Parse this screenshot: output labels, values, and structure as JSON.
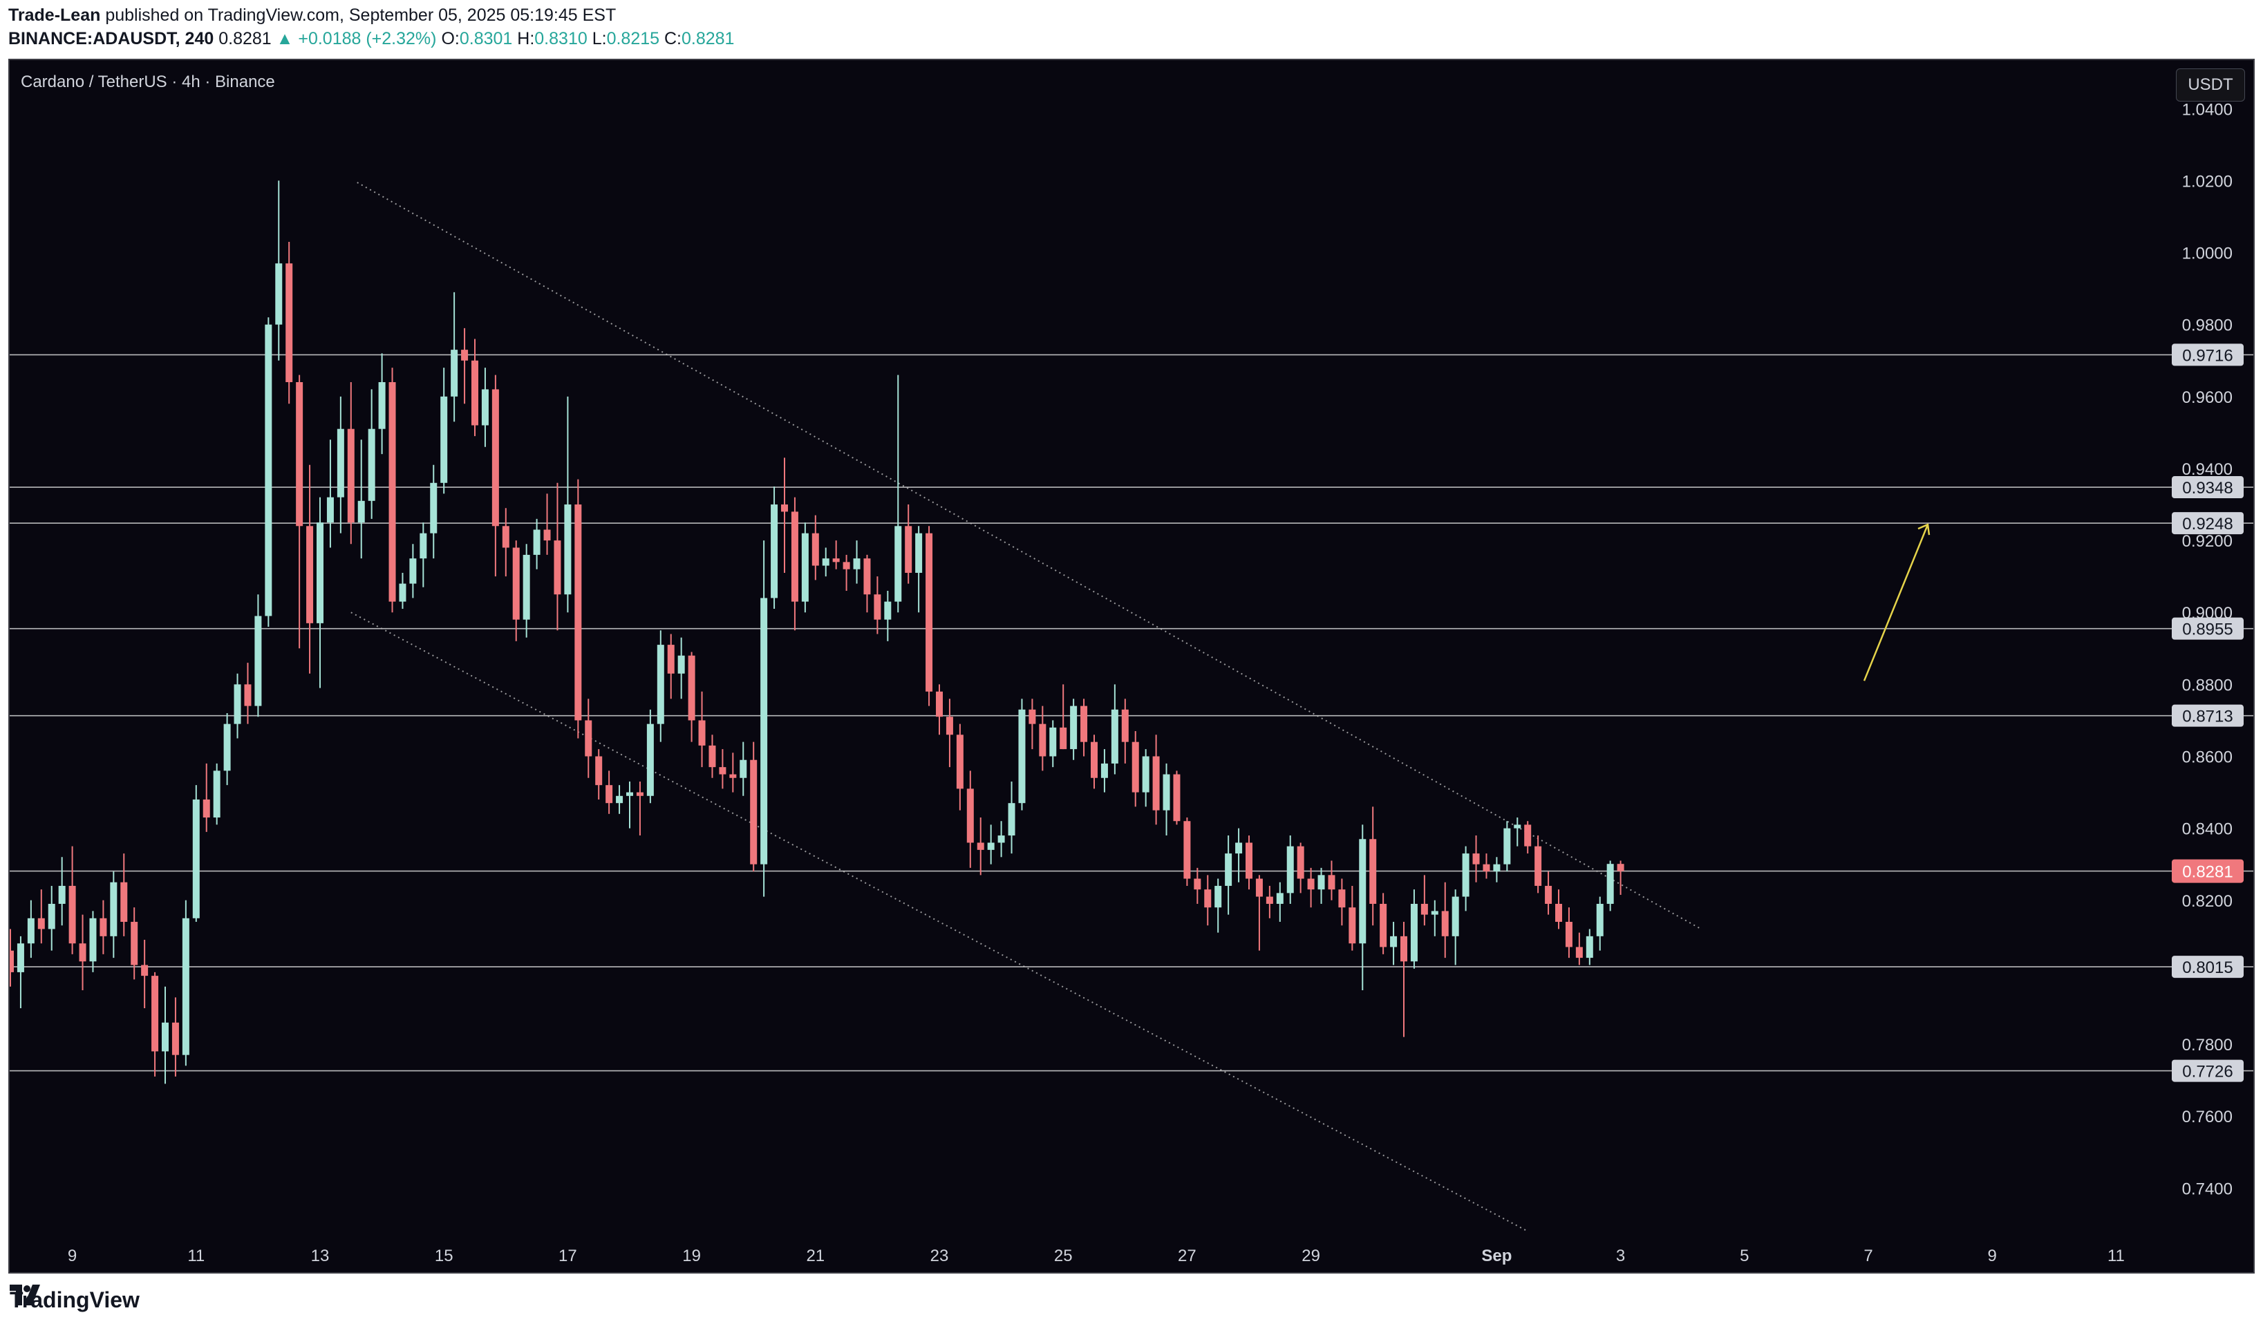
{
  "header": {
    "author": "Trade-Lean",
    "published_text": "published on TradingView.com, September 05, 2025 05:19:45 EST",
    "symbol": "BINANCE:ADAUSDT, 240",
    "last": "0.8281",
    "change": "+0.0188 (+2.32%)",
    "o_label": "O:",
    "o_value": "0.8301",
    "h_label": "H:",
    "h_value": "0.8310",
    "l_label": "L:",
    "l_value": "0.8215",
    "c_label": "C:",
    "c_value": "0.8281"
  },
  "chart_title": "Cardano / TetherUS · 4h · Binance",
  "currency_button": "USDT",
  "footer": {
    "logo_text": "TradingView",
    "logo_icon": "tradingview-logo-icon"
  },
  "colors": {
    "up": "#a6e3d7",
    "down": "#f0787d",
    "bg": "#080710",
    "line": "#d9d9d9",
    "arrow": "#e5d34a",
    "grid_text": "#d1d4dc"
  },
  "chart_data": {
    "type": "candlestick",
    "title": "Cardano / TetherUS · 4h · Binance",
    "x_ticks": [
      "9",
      "11",
      "13",
      "15",
      "17",
      "19",
      "21",
      "23",
      "25",
      "27",
      "29",
      "Sep",
      "3",
      "5",
      "7",
      "9",
      "11"
    ],
    "y_ticks": [
      "1.0400",
      "1.0200",
      "1.0000",
      "0.9800",
      "0.9600",
      "0.9400",
      "0.9200",
      "0.9000",
      "0.8800",
      "0.8600",
      "0.8400",
      "0.8200",
      "0.7800",
      "0.7600",
      "0.7400"
    ],
    "ylim": [
      0.727,
      1.0535
    ],
    "horizontal_levels": [
      "0.9716",
      "0.9348",
      "0.9248",
      "0.8955",
      "0.8713",
      "0.8015",
      "0.7726"
    ],
    "current_price": "0.8281",
    "candles": [
      {
        "o": 0.806,
        "h": 0.812,
        "l": 0.796,
        "c": 0.8
      },
      {
        "o": 0.8,
        "h": 0.81,
        "l": 0.79,
        "c": 0.808
      },
      {
        "o": 0.808,
        "h": 0.82,
        "l": 0.804,
        "c": 0.815
      },
      {
        "o": 0.815,
        "h": 0.823,
        "l": 0.808,
        "c": 0.812
      },
      {
        "o": 0.812,
        "h": 0.824,
        "l": 0.806,
        "c": 0.819
      },
      {
        "o": 0.819,
        "h": 0.832,
        "l": 0.813,
        "c": 0.824
      },
      {
        "o": 0.824,
        "h": 0.835,
        "l": 0.805,
        "c": 0.808
      },
      {
        "o": 0.808,
        "h": 0.816,
        "l": 0.795,
        "c": 0.803
      },
      {
        "o": 0.803,
        "h": 0.817,
        "l": 0.8,
        "c": 0.815
      },
      {
        "o": 0.815,
        "h": 0.82,
        "l": 0.805,
        "c": 0.81
      },
      {
        "o": 0.81,
        "h": 0.828,
        "l": 0.804,
        "c": 0.825
      },
      {
        "o": 0.825,
        "h": 0.833,
        "l": 0.81,
        "c": 0.814
      },
      {
        "o": 0.814,
        "h": 0.818,
        "l": 0.798,
        "c": 0.802
      },
      {
        "o": 0.802,
        "h": 0.809,
        "l": 0.79,
        "c": 0.799
      },
      {
        "o": 0.799,
        "h": 0.8,
        "l": 0.771,
        "c": 0.778
      },
      {
        "o": 0.778,
        "h": 0.796,
        "l": 0.769,
        "c": 0.786
      },
      {
        "o": 0.786,
        "h": 0.793,
        "l": 0.771,
        "c": 0.777
      },
      {
        "o": 0.777,
        "h": 0.82,
        "l": 0.774,
        "c": 0.815
      },
      {
        "o": 0.815,
        "h": 0.852,
        "l": 0.814,
        "c": 0.848
      },
      {
        "o": 0.848,
        "h": 0.858,
        "l": 0.839,
        "c": 0.843
      },
      {
        "o": 0.843,
        "h": 0.858,
        "l": 0.841,
        "c": 0.856
      },
      {
        "o": 0.856,
        "h": 0.872,
        "l": 0.852,
        "c": 0.869
      },
      {
        "o": 0.869,
        "h": 0.883,
        "l": 0.865,
        "c": 0.88
      },
      {
        "o": 0.88,
        "h": 0.886,
        "l": 0.869,
        "c": 0.874
      },
      {
        "o": 0.874,
        "h": 0.905,
        "l": 0.871,
        "c": 0.899
      },
      {
        "o": 0.899,
        "h": 0.982,
        "l": 0.896,
        "c": 0.98
      },
      {
        "o": 0.98,
        "h": 1.02,
        "l": 0.97,
        "c": 0.997
      },
      {
        "o": 0.997,
        "h": 1.003,
        "l": 0.958,
        "c": 0.964
      },
      {
        "o": 0.964,
        "h": 0.966,
        "l": 0.89,
        "c": 0.924
      },
      {
        "o": 0.924,
        "h": 0.941,
        "l": 0.883,
        "c": 0.897
      },
      {
        "o": 0.897,
        "h": 0.932,
        "l": 0.879,
        "c": 0.925
      },
      {
        "o": 0.925,
        "h": 0.948,
        "l": 0.918,
        "c": 0.932
      },
      {
        "o": 0.932,
        "h": 0.96,
        "l": 0.922,
        "c": 0.951
      },
      {
        "o": 0.951,
        "h": 0.964,
        "l": 0.919,
        "c": 0.925
      },
      {
        "o": 0.925,
        "h": 0.948,
        "l": 0.915,
        "c": 0.931
      },
      {
        "o": 0.931,
        "h": 0.962,
        "l": 0.926,
        "c": 0.951
      },
      {
        "o": 0.951,
        "h": 0.972,
        "l": 0.944,
        "c": 0.964
      },
      {
        "o": 0.964,
        "h": 0.968,
        "l": 0.9,
        "c": 0.903
      },
      {
        "o": 0.903,
        "h": 0.911,
        "l": 0.901,
        "c": 0.908
      },
      {
        "o": 0.908,
        "h": 0.919,
        "l": 0.904,
        "c": 0.915
      },
      {
        "o": 0.915,
        "h": 0.925,
        "l": 0.907,
        "c": 0.922
      },
      {
        "o": 0.922,
        "h": 0.941,
        "l": 0.915,
        "c": 0.936
      },
      {
        "o": 0.936,
        "h": 0.968,
        "l": 0.933,
        "c": 0.96
      },
      {
        "o": 0.96,
        "h": 0.989,
        "l": 0.953,
        "c": 0.973
      },
      {
        "o": 0.973,
        "h": 0.979,
        "l": 0.958,
        "c": 0.97
      },
      {
        "o": 0.97,
        "h": 0.976,
        "l": 0.949,
        "c": 0.952
      },
      {
        "o": 0.952,
        "h": 0.968,
        "l": 0.946,
        "c": 0.962
      },
      {
        "o": 0.962,
        "h": 0.966,
        "l": 0.91,
        "c": 0.924
      },
      {
        "o": 0.924,
        "h": 0.929,
        "l": 0.91,
        "c": 0.918
      },
      {
        "o": 0.918,
        "h": 0.92,
        "l": 0.892,
        "c": 0.898
      },
      {
        "o": 0.898,
        "h": 0.919,
        "l": 0.893,
        "c": 0.916
      },
      {
        "o": 0.916,
        "h": 0.926,
        "l": 0.912,
        "c": 0.923
      },
      {
        "o": 0.923,
        "h": 0.933,
        "l": 0.916,
        "c": 0.92
      },
      {
        "o": 0.92,
        "h": 0.936,
        "l": 0.895,
        "c": 0.905
      },
      {
        "o": 0.905,
        "h": 0.96,
        "l": 0.9,
        "c": 0.93
      },
      {
        "o": 0.93,
        "h": 0.937,
        "l": 0.865,
        "c": 0.87
      },
      {
        "o": 0.87,
        "h": 0.876,
        "l": 0.854,
        "c": 0.86
      },
      {
        "o": 0.86,
        "h": 0.862,
        "l": 0.848,
        "c": 0.852
      },
      {
        "o": 0.852,
        "h": 0.856,
        "l": 0.844,
        "c": 0.847
      },
      {
        "o": 0.847,
        "h": 0.852,
        "l": 0.844,
        "c": 0.849
      },
      {
        "o": 0.849,
        "h": 0.853,
        "l": 0.84,
        "c": 0.85
      },
      {
        "o": 0.85,
        "h": 0.853,
        "l": 0.838,
        "c": 0.849
      },
      {
        "o": 0.849,
        "h": 0.873,
        "l": 0.847,
        "c": 0.869
      },
      {
        "o": 0.869,
        "h": 0.895,
        "l": 0.864,
        "c": 0.891
      },
      {
        "o": 0.891,
        "h": 0.894,
        "l": 0.876,
        "c": 0.883
      },
      {
        "o": 0.883,
        "h": 0.893,
        "l": 0.876,
        "c": 0.888
      },
      {
        "o": 0.888,
        "h": 0.889,
        "l": 0.864,
        "c": 0.87
      },
      {
        "o": 0.87,
        "h": 0.878,
        "l": 0.857,
        "c": 0.863
      },
      {
        "o": 0.863,
        "h": 0.866,
        "l": 0.854,
        "c": 0.857
      },
      {
        "o": 0.857,
        "h": 0.862,
        "l": 0.851,
        "c": 0.855
      },
      {
        "o": 0.855,
        "h": 0.861,
        "l": 0.85,
        "c": 0.854
      },
      {
        "o": 0.854,
        "h": 0.864,
        "l": 0.849,
        "c": 0.859
      },
      {
        "o": 0.859,
        "h": 0.864,
        "l": 0.828,
        "c": 0.83
      },
      {
        "o": 0.83,
        "h": 0.92,
        "l": 0.821,
        "c": 0.904
      },
      {
        "o": 0.904,
        "h": 0.935,
        "l": 0.901,
        "c": 0.93
      },
      {
        "o": 0.93,
        "h": 0.943,
        "l": 0.911,
        "c": 0.928
      },
      {
        "o": 0.928,
        "h": 0.932,
        "l": 0.895,
        "c": 0.903
      },
      {
        "o": 0.903,
        "h": 0.925,
        "l": 0.9,
        "c": 0.922
      },
      {
        "o": 0.922,
        "h": 0.927,
        "l": 0.909,
        "c": 0.913
      },
      {
        "o": 0.913,
        "h": 0.918,
        "l": 0.91,
        "c": 0.915
      },
      {
        "o": 0.915,
        "h": 0.92,
        "l": 0.912,
        "c": 0.914
      },
      {
        "o": 0.914,
        "h": 0.916,
        "l": 0.906,
        "c": 0.912
      },
      {
        "o": 0.912,
        "h": 0.92,
        "l": 0.908,
        "c": 0.915
      },
      {
        "o": 0.915,
        "h": 0.916,
        "l": 0.9,
        "c": 0.905
      },
      {
        "o": 0.905,
        "h": 0.91,
        "l": 0.894,
        "c": 0.898
      },
      {
        "o": 0.898,
        "h": 0.906,
        "l": 0.892,
        "c": 0.903
      },
      {
        "o": 0.903,
        "h": 0.966,
        "l": 0.9,
        "c": 0.924
      },
      {
        "o": 0.924,
        "h": 0.93,
        "l": 0.908,
        "c": 0.911
      },
      {
        "o": 0.911,
        "h": 0.924,
        "l": 0.9,
        "c": 0.922
      },
      {
        "o": 0.922,
        "h": 0.924,
        "l": 0.874,
        "c": 0.878
      },
      {
        "o": 0.878,
        "h": 0.88,
        "l": 0.866,
        "c": 0.871
      },
      {
        "o": 0.871,
        "h": 0.876,
        "l": 0.857,
        "c": 0.866
      },
      {
        "o": 0.866,
        "h": 0.869,
        "l": 0.845,
        "c": 0.851
      },
      {
        "o": 0.851,
        "h": 0.856,
        "l": 0.829,
        "c": 0.836
      },
      {
        "o": 0.836,
        "h": 0.843,
        "l": 0.827,
        "c": 0.834
      },
      {
        "o": 0.834,
        "h": 0.841,
        "l": 0.83,
        "c": 0.836
      },
      {
        "o": 0.836,
        "h": 0.842,
        "l": 0.832,
        "c": 0.838
      },
      {
        "o": 0.838,
        "h": 0.853,
        "l": 0.833,
        "c": 0.847
      },
      {
        "o": 0.847,
        "h": 0.876,
        "l": 0.845,
        "c": 0.873
      },
      {
        "o": 0.873,
        "h": 0.876,
        "l": 0.862,
        "c": 0.869
      },
      {
        "o": 0.869,
        "h": 0.874,
        "l": 0.856,
        "c": 0.86
      },
      {
        "o": 0.86,
        "h": 0.87,
        "l": 0.857,
        "c": 0.868
      },
      {
        "o": 0.868,
        "h": 0.88,
        "l": 0.862,
        "c": 0.862
      },
      {
        "o": 0.862,
        "h": 0.876,
        "l": 0.859,
        "c": 0.874
      },
      {
        "o": 0.874,
        "h": 0.876,
        "l": 0.86,
        "c": 0.864
      },
      {
        "o": 0.864,
        "h": 0.866,
        "l": 0.851,
        "c": 0.854
      },
      {
        "o": 0.854,
        "h": 0.862,
        "l": 0.85,
        "c": 0.858
      },
      {
        "o": 0.858,
        "h": 0.88,
        "l": 0.855,
        "c": 0.873
      },
      {
        "o": 0.873,
        "h": 0.876,
        "l": 0.858,
        "c": 0.864
      },
      {
        "o": 0.864,
        "h": 0.867,
        "l": 0.846,
        "c": 0.85
      },
      {
        "o": 0.85,
        "h": 0.862,
        "l": 0.846,
        "c": 0.86
      },
      {
        "o": 0.86,
        "h": 0.866,
        "l": 0.841,
        "c": 0.845
      },
      {
        "o": 0.845,
        "h": 0.858,
        "l": 0.838,
        "c": 0.855
      },
      {
        "o": 0.855,
        "h": 0.856,
        "l": 0.841,
        "c": 0.842
      },
      {
        "o": 0.842,
        "h": 0.843,
        "l": 0.824,
        "c": 0.826
      },
      {
        "o": 0.826,
        "h": 0.829,
        "l": 0.819,
        "c": 0.823
      },
      {
        "o": 0.823,
        "h": 0.827,
        "l": 0.813,
        "c": 0.818
      },
      {
        "o": 0.818,
        "h": 0.826,
        "l": 0.811,
        "c": 0.824
      },
      {
        "o": 0.824,
        "h": 0.838,
        "l": 0.816,
        "c": 0.833
      },
      {
        "o": 0.833,
        "h": 0.84,
        "l": 0.825,
        "c": 0.836
      },
      {
        "o": 0.836,
        "h": 0.838,
        "l": 0.823,
        "c": 0.826
      },
      {
        "o": 0.826,
        "h": 0.827,
        "l": 0.806,
        "c": 0.821
      },
      {
        "o": 0.821,
        "h": 0.824,
        "l": 0.815,
        "c": 0.819
      },
      {
        "o": 0.819,
        "h": 0.825,
        "l": 0.814,
        "c": 0.822
      },
      {
        "o": 0.822,
        "h": 0.838,
        "l": 0.819,
        "c": 0.835
      },
      {
        "o": 0.835,
        "h": 0.836,
        "l": 0.822,
        "c": 0.826
      },
      {
        "o": 0.826,
        "h": 0.829,
        "l": 0.818,
        "c": 0.823
      },
      {
        "o": 0.823,
        "h": 0.829,
        "l": 0.819,
        "c": 0.827
      },
      {
        "o": 0.827,
        "h": 0.831,
        "l": 0.82,
        "c": 0.823
      },
      {
        "o": 0.823,
        "h": 0.826,
        "l": 0.813,
        "c": 0.818
      },
      {
        "o": 0.818,
        "h": 0.824,
        "l": 0.806,
        "c": 0.808
      },
      {
        "o": 0.808,
        "h": 0.841,
        "l": 0.795,
        "c": 0.837
      },
      {
        "o": 0.837,
        "h": 0.846,
        "l": 0.813,
        "c": 0.819
      },
      {
        "o": 0.819,
        "h": 0.822,
        "l": 0.805,
        "c": 0.807
      },
      {
        "o": 0.807,
        "h": 0.814,
        "l": 0.802,
        "c": 0.81
      },
      {
        "o": 0.81,
        "h": 0.814,
        "l": 0.782,
        "c": 0.803
      },
      {
        "o": 0.803,
        "h": 0.823,
        "l": 0.801,
        "c": 0.819
      },
      {
        "o": 0.819,
        "h": 0.827,
        "l": 0.813,
        "c": 0.816
      },
      {
        "o": 0.816,
        "h": 0.82,
        "l": 0.81,
        "c": 0.817
      },
      {
        "o": 0.817,
        "h": 0.825,
        "l": 0.804,
        "c": 0.81
      },
      {
        "o": 0.81,
        "h": 0.823,
        "l": 0.802,
        "c": 0.821
      },
      {
        "o": 0.821,
        "h": 0.835,
        "l": 0.817,
        "c": 0.833
      },
      {
        "o": 0.833,
        "h": 0.838,
        "l": 0.825,
        "c": 0.83
      },
      {
        "o": 0.83,
        "h": 0.833,
        "l": 0.826,
        "c": 0.828
      },
      {
        "o": 0.828,
        "h": 0.832,
        "l": 0.825,
        "c": 0.83
      },
      {
        "o": 0.83,
        "h": 0.842,
        "l": 0.828,
        "c": 0.84
      },
      {
        "o": 0.84,
        "h": 0.843,
        "l": 0.835,
        "c": 0.841
      },
      {
        "o": 0.841,
        "h": 0.842,
        "l": 0.833,
        "c": 0.835
      },
      {
        "o": 0.835,
        "h": 0.838,
        "l": 0.822,
        "c": 0.824
      },
      {
        "o": 0.824,
        "h": 0.828,
        "l": 0.816,
        "c": 0.819
      },
      {
        "o": 0.819,
        "h": 0.823,
        "l": 0.812,
        "c": 0.814
      },
      {
        "o": 0.814,
        "h": 0.818,
        "l": 0.804,
        "c": 0.807
      },
      {
        "o": 0.807,
        "h": 0.811,
        "l": 0.802,
        "c": 0.804
      },
      {
        "o": 0.804,
        "h": 0.812,
        "l": 0.802,
        "c": 0.81
      },
      {
        "o": 0.81,
        "h": 0.821,
        "l": 0.806,
        "c": 0.819
      },
      {
        "o": 0.819,
        "h": 0.831,
        "l": 0.817,
        "c": 0.8301
      },
      {
        "o": 0.8301,
        "h": 0.831,
        "l": 0.8215,
        "c": 0.8281
      }
    ]
  }
}
